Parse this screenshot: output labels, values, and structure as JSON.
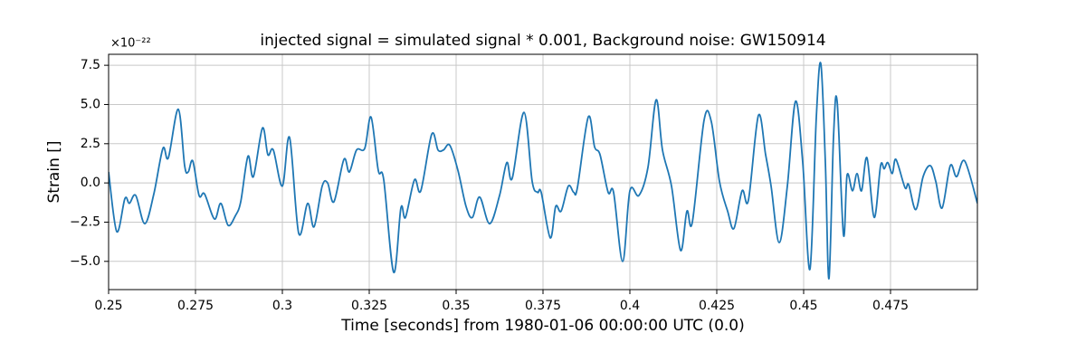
{
  "chart_data": {
    "type": "line",
    "title": "injected signal = simulated signal * 0.001, Background noise: GW150914",
    "x_label": "Time [seconds] from 1980-01-06 00:00:00 UTC (0.0)",
    "y_label": "Strain []",
    "y_multiplier": "×10⁻²²",
    "xlim": [
      0.25,
      0.5
    ],
    "ylim": [
      -6.8,
      8.2
    ],
    "xticks": [
      0.25,
      0.275,
      0.3,
      0.325,
      0.35,
      0.375,
      0.4,
      0.425,
      0.45,
      0.475
    ],
    "yticks": [
      {
        "value": -5,
        "label": "−5.0"
      },
      {
        "value": -2.5,
        "label": "−2.5"
      },
      {
        "value": 0,
        "label": "0.0"
      },
      {
        "value": 2.5,
        "label": "2.5"
      },
      {
        "value": 5,
        "label": "5.0"
      },
      {
        "value": 7.5,
        "label": "7.5"
      }
    ],
    "grid": true,
    "series": [
      {
        "name": "strain",
        "color": "#1f77b4",
        "x": [
          0.25,
          0.25234,
          0.25469,
          0.25599,
          0.25781,
          0.26042,
          0.26302,
          0.26563,
          0.26719,
          0.27005,
          0.27188,
          0.27292,
          0.27422,
          0.27604,
          0.2776,
          0.28047,
          0.28229,
          0.28438,
          0.28646,
          0.28802,
          0.2901,
          0.29167,
          0.29427,
          0.29583,
          0.2974,
          0.3,
          0.30208,
          0.30469,
          0.30729,
          0.30911,
          0.31146,
          0.31302,
          0.31484,
          0.31771,
          0.31927,
          0.32135,
          0.3237,
          0.32552,
          0.3276,
          0.32917,
          0.33203,
          0.33411,
          0.33542,
          0.33802,
          0.33984,
          0.34297,
          0.34479,
          0.34635,
          0.34818,
          0.35052,
          0.35286,
          0.35469,
          0.35677,
          0.35964,
          0.3625,
          0.36458,
          0.36615,
          0.36953,
          0.37188,
          0.37344,
          0.37448,
          0.37708,
          0.37865,
          0.38021,
          0.38229,
          0.38385,
          0.3849,
          0.38802,
          0.38984,
          0.39141,
          0.39375,
          0.39531,
          0.39792,
          0.4,
          0.4026,
          0.40521,
          0.40755,
          0.40938,
          0.41198,
          0.41458,
          0.41641,
          0.41797,
          0.42135,
          0.42344,
          0.42578,
          0.42813,
          0.42995,
          0.43229,
          0.43411,
          0.43698,
          0.43906,
          0.44063,
          0.44297,
          0.44531,
          0.44766,
          0.44974,
          0.45182,
          0.45365,
          0.45495,
          0.45625,
          0.45729,
          0.45859,
          0.45964,
          0.46146,
          0.4625,
          0.46406,
          0.46536,
          0.46667,
          0.46823,
          0.47031,
          0.47214,
          0.47318,
          0.47422,
          0.47552,
          0.47656,
          0.47917,
          0.48021,
          0.48229,
          0.48438,
          0.48646,
          0.48802,
          0.48984,
          0.49219,
          0.49401,
          0.49635,
          0.5
        ],
        "values": [
          0.7,
          -3.1,
          -1.0,
          -1.3,
          -0.8,
          -2.6,
          -0.7,
          2.2,
          1.6,
          4.7,
          1.1,
          0.7,
          1.4,
          -0.8,
          -0.7,
          -2.3,
          -1.3,
          -2.7,
          -2.1,
          -1.2,
          1.7,
          0.4,
          3.5,
          1.8,
          2.1,
          -0.2,
          2.9,
          -3.2,
          -1.3,
          -2.8,
          -0.2,
          0.0,
          -1.2,
          1.5,
          0.7,
          2.1,
          2.2,
          4.2,
          0.8,
          0.2,
          -5.7,
          -1.6,
          -2.2,
          0.2,
          -0.5,
          3.1,
          2.1,
          2.1,
          2.4,
          0.8,
          -1.5,
          -2.2,
          -0.9,
          -2.6,
          -0.8,
          1.3,
          0.3,
          4.5,
          0.1,
          -0.6,
          -0.6,
          -3.5,
          -1.5,
          -1.8,
          -0.2,
          -0.6,
          -0.3,
          4.2,
          2.3,
          1.8,
          -0.6,
          -0.6,
          -5.0,
          -0.5,
          -0.8,
          1.0,
          5.3,
          2.1,
          -0.2,
          -4.3,
          -1.8,
          -2.5,
          4.0,
          3.9,
          0.1,
          -1.8,
          -2.9,
          -0.5,
          -1.1,
          4.3,
          1.8,
          -0.2,
          -3.8,
          -0.2,
          5.2,
          1.3,
          -5.5,
          4.2,
          7.6,
          1.3,
          -6.1,
          2.9,
          5.2,
          -3.3,
          0.5,
          -0.5,
          0.6,
          -0.5,
          1.6,
          -2.2,
          1.1,
          0.9,
          1.3,
          0.6,
          1.5,
          -0.3,
          -0.1,
          -1.7,
          0.4,
          1.1,
          0.1,
          -1.6,
          1.1,
          0.4,
          1.4,
          -1.3
        ]
      }
    ]
  }
}
